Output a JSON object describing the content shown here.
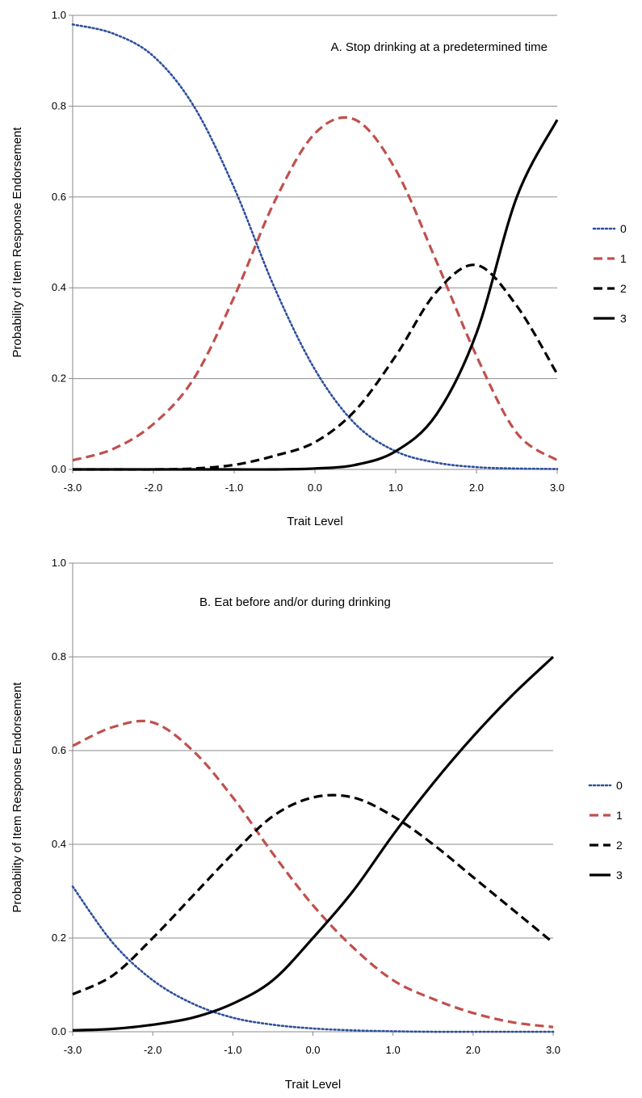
{
  "chart_data": [
    {
      "type": "line",
      "title": "A. Stop drinking at a predetermined time",
      "xlabel": "Trait Level",
      "ylabel": "Probability of Item Response Endorsement",
      "xlim": [
        -3.0,
        3.0
      ],
      "ylim": [
        0.0,
        1.0
      ],
      "x_ticks": [
        "-3.0",
        "-2.0",
        "-1.0",
        "0.0",
        "1.0",
        "2.0",
        "3.0"
      ],
      "y_ticks": [
        "0.0",
        "0.2",
        "0.4",
        "0.6",
        "0.8",
        "1.0"
      ],
      "grid": "horizontal",
      "legend_position": "right",
      "x": [
        -3.0,
        -2.5,
        -2.0,
        -1.5,
        -1.0,
        -0.5,
        0.0,
        0.5,
        1.0,
        1.5,
        2.0,
        2.5,
        3.0
      ],
      "series": [
        {
          "name": "0",
          "color": "#2e4f9c",
          "style": "dotted",
          "values": [
            0.98,
            0.96,
            0.91,
            0.8,
            0.62,
            0.4,
            0.22,
            0.1,
            0.04,
            0.015,
            0.005,
            0.002,
            0.001
          ]
        },
        {
          "name": "1",
          "color": "#c0504d",
          "style": "dashed",
          "values": [
            0.02,
            0.045,
            0.1,
            0.2,
            0.38,
            0.59,
            0.74,
            0.77,
            0.66,
            0.46,
            0.25,
            0.08,
            0.02
          ]
        },
        {
          "name": "2",
          "color": "#000000",
          "style": "dashed",
          "values": [
            0.0,
            0.0,
            0.0,
            0.002,
            0.01,
            0.03,
            0.06,
            0.13,
            0.25,
            0.39,
            0.45,
            0.36,
            0.21
          ]
        },
        {
          "name": "3",
          "color": "#000000",
          "style": "solid",
          "values": [
            0.0,
            0.0,
            0.0,
            0.0,
            0.0,
            0.0,
            0.002,
            0.01,
            0.04,
            0.12,
            0.3,
            0.6,
            0.77
          ]
        }
      ]
    },
    {
      "type": "line",
      "title": "B. Eat before and/or during drinking",
      "xlabel": "Trait Level",
      "ylabel": "Probability of Item Response Endorsement",
      "xlim": [
        -3.0,
        3.0
      ],
      "ylim": [
        0.0,
        1.0
      ],
      "x_ticks": [
        "-3.0",
        "-2.0",
        "-1.0",
        "0.0",
        "1.0",
        "2.0",
        "3.0"
      ],
      "y_ticks": [
        "0.0",
        "0.2",
        "0.4",
        "0.6",
        "0.8",
        "1.0"
      ],
      "grid": "horizontal",
      "legend_position": "right",
      "x": [
        -3.0,
        -2.5,
        -2.0,
        -1.5,
        -1.0,
        -0.5,
        0.0,
        0.5,
        1.0,
        1.5,
        2.0,
        2.5,
        3.0
      ],
      "series": [
        {
          "name": "0",
          "color": "#2e4f9c",
          "style": "dotted",
          "values": [
            0.31,
            0.19,
            0.11,
            0.06,
            0.03,
            0.015,
            0.007,
            0.003,
            0.001,
            0.0,
            0.0,
            0.0,
            0.0
          ]
        },
        {
          "name": "1",
          "color": "#c0504d",
          "style": "dashed",
          "values": [
            0.61,
            0.65,
            0.66,
            0.6,
            0.5,
            0.38,
            0.27,
            0.18,
            0.11,
            0.07,
            0.04,
            0.02,
            0.01
          ]
        },
        {
          "name": "2",
          "color": "#000000",
          "style": "dashed",
          "values": [
            0.08,
            0.12,
            0.2,
            0.29,
            0.38,
            0.46,
            0.5,
            0.5,
            0.46,
            0.4,
            0.33,
            0.26,
            0.19
          ]
        },
        {
          "name": "3",
          "color": "#000000",
          "style": "solid",
          "values": [
            0.003,
            0.006,
            0.015,
            0.03,
            0.06,
            0.11,
            0.2,
            0.3,
            0.42,
            0.53,
            0.63,
            0.72,
            0.8
          ]
        }
      ]
    }
  ]
}
